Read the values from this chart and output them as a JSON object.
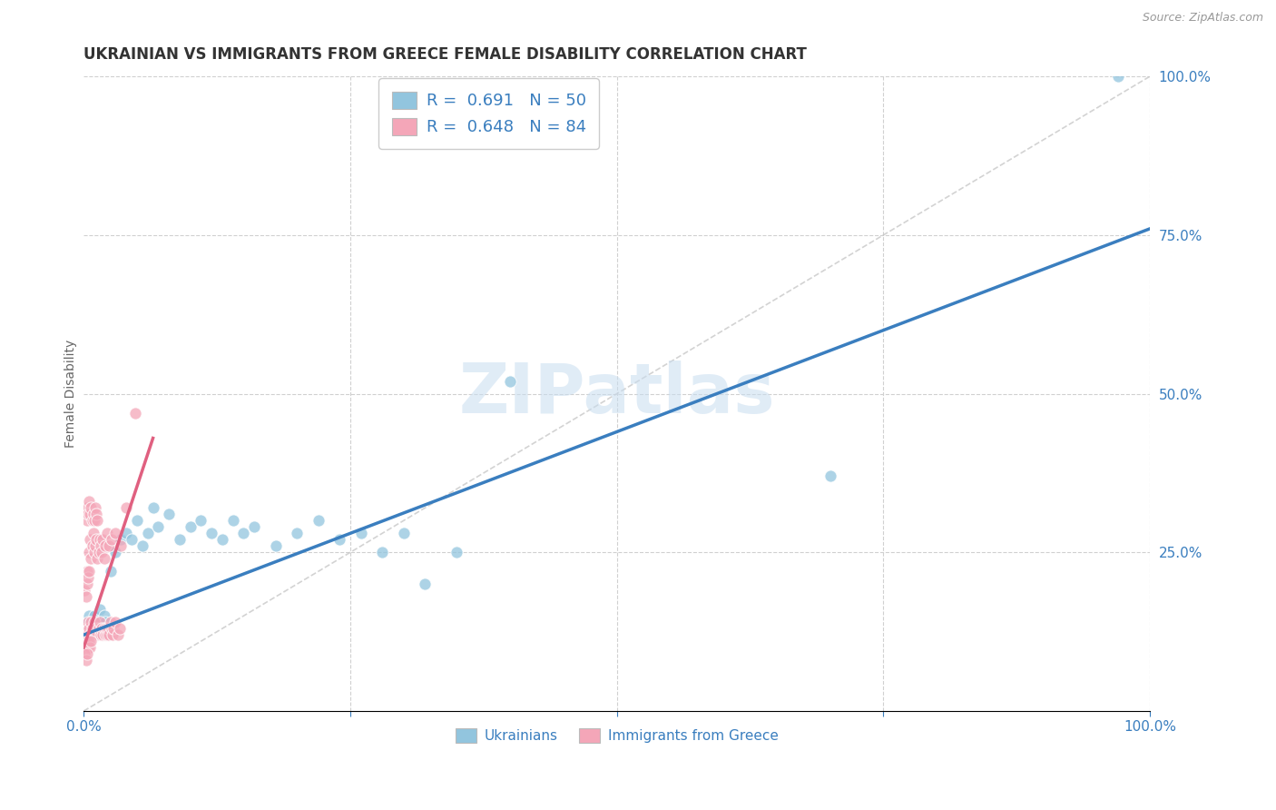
{
  "title": "UKRAINIAN VS IMMIGRANTS FROM GREECE FEMALE DISABILITY CORRELATION CHART",
  "source": "Source: ZipAtlas.com",
  "ylabel": "Female Disability",
  "xlim": [
    0,
    1
  ],
  "ylim": [
    0,
    1
  ],
  "watermark": "ZIPatlas",
  "blue_color": "#92c5de",
  "pink_color": "#f4a6b8",
  "line_blue": "#3a7ebf",
  "line_pink": "#e06080",
  "legend_text_color": "#3a7ebf",
  "title_color": "#333333",
  "grid_color": "#d0d0d0",
  "diagonal_color": "#c8c8c8",
  "blue_scatter": [
    [
      0.002,
      0.14
    ],
    [
      0.003,
      0.13
    ],
    [
      0.004,
      0.13
    ],
    [
      0.005,
      0.15
    ],
    [
      0.006,
      0.12
    ],
    [
      0.007,
      0.14
    ],
    [
      0.008,
      0.13
    ],
    [
      0.009,
      0.12
    ],
    [
      0.01,
      0.15
    ],
    [
      0.011,
      0.13
    ],
    [
      0.012,
      0.14
    ],
    [
      0.013,
      0.12
    ],
    [
      0.014,
      0.13
    ],
    [
      0.015,
      0.16
    ],
    [
      0.016,
      0.14
    ],
    [
      0.017,
      0.13
    ],
    [
      0.018,
      0.12
    ],
    [
      0.019,
      0.15
    ],
    [
      0.02,
      0.14
    ],
    [
      0.025,
      0.22
    ],
    [
      0.03,
      0.25
    ],
    [
      0.035,
      0.27
    ],
    [
      0.04,
      0.28
    ],
    [
      0.045,
      0.27
    ],
    [
      0.05,
      0.3
    ],
    [
      0.055,
      0.26
    ],
    [
      0.06,
      0.28
    ],
    [
      0.065,
      0.32
    ],
    [
      0.07,
      0.29
    ],
    [
      0.08,
      0.31
    ],
    [
      0.09,
      0.27
    ],
    [
      0.1,
      0.29
    ],
    [
      0.11,
      0.3
    ],
    [
      0.12,
      0.28
    ],
    [
      0.13,
      0.27
    ],
    [
      0.14,
      0.3
    ],
    [
      0.15,
      0.28
    ],
    [
      0.16,
      0.29
    ],
    [
      0.18,
      0.26
    ],
    [
      0.2,
      0.28
    ],
    [
      0.22,
      0.3
    ],
    [
      0.24,
      0.27
    ],
    [
      0.26,
      0.28
    ],
    [
      0.28,
      0.25
    ],
    [
      0.3,
      0.28
    ],
    [
      0.32,
      0.2
    ],
    [
      0.35,
      0.25
    ],
    [
      0.4,
      0.52
    ],
    [
      0.7,
      0.37
    ],
    [
      0.97,
      1.0
    ]
  ],
  "pink_scatter": [
    [
      0.001,
      0.12
    ],
    [
      0.002,
      0.13
    ],
    [
      0.003,
      0.12
    ],
    [
      0.004,
      0.14
    ],
    [
      0.005,
      0.13
    ],
    [
      0.006,
      0.12
    ],
    [
      0.007,
      0.14
    ],
    [
      0.008,
      0.13
    ],
    [
      0.009,
      0.12
    ],
    [
      0.01,
      0.14
    ],
    [
      0.011,
      0.12
    ],
    [
      0.012,
      0.13
    ],
    [
      0.013,
      0.12
    ],
    [
      0.014,
      0.13
    ],
    [
      0.015,
      0.14
    ],
    [
      0.016,
      0.12
    ],
    [
      0.017,
      0.13
    ],
    [
      0.018,
      0.12
    ],
    [
      0.019,
      0.13
    ],
    [
      0.02,
      0.12
    ],
    [
      0.021,
      0.13
    ],
    [
      0.022,
      0.12
    ],
    [
      0.023,
      0.13
    ],
    [
      0.024,
      0.12
    ],
    [
      0.025,
      0.14
    ],
    [
      0.026,
      0.13
    ],
    [
      0.027,
      0.12
    ],
    [
      0.028,
      0.13
    ],
    [
      0.03,
      0.14
    ],
    [
      0.032,
      0.12
    ],
    [
      0.034,
      0.13
    ],
    [
      0.003,
      0.22
    ],
    [
      0.005,
      0.25
    ],
    [
      0.006,
      0.27
    ],
    [
      0.007,
      0.24
    ],
    [
      0.008,
      0.26
    ],
    [
      0.009,
      0.28
    ],
    [
      0.01,
      0.25
    ],
    [
      0.011,
      0.26
    ],
    [
      0.012,
      0.27
    ],
    [
      0.013,
      0.24
    ],
    [
      0.014,
      0.25
    ],
    [
      0.015,
      0.27
    ],
    [
      0.016,
      0.26
    ],
    [
      0.017,
      0.25
    ],
    [
      0.018,
      0.27
    ],
    [
      0.019,
      0.24
    ],
    [
      0.02,
      0.26
    ],
    [
      0.022,
      0.28
    ],
    [
      0.024,
      0.26
    ],
    [
      0.026,
      0.27
    ],
    [
      0.03,
      0.28
    ],
    [
      0.035,
      0.26
    ],
    [
      0.002,
      0.32
    ],
    [
      0.003,
      0.3
    ],
    [
      0.004,
      0.31
    ],
    [
      0.005,
      0.33
    ],
    [
      0.006,
      0.31
    ],
    [
      0.007,
      0.32
    ],
    [
      0.008,
      0.3
    ],
    [
      0.009,
      0.31
    ],
    [
      0.01,
      0.3
    ],
    [
      0.011,
      0.32
    ],
    [
      0.012,
      0.31
    ],
    [
      0.013,
      0.3
    ],
    [
      0.001,
      0.11
    ],
    [
      0.002,
      0.1
    ],
    [
      0.003,
      0.11
    ],
    [
      0.004,
      0.1
    ],
    [
      0.005,
      0.11
    ],
    [
      0.006,
      0.1
    ],
    [
      0.007,
      0.11
    ],
    [
      0.001,
      0.09
    ],
    [
      0.002,
      0.08
    ],
    [
      0.003,
      0.09
    ],
    [
      0.04,
      0.32
    ],
    [
      0.048,
      0.47
    ],
    [
      0.001,
      0.19
    ],
    [
      0.002,
      0.18
    ],
    [
      0.003,
      0.2
    ],
    [
      0.004,
      0.21
    ],
    [
      0.005,
      0.22
    ]
  ],
  "blue_line_x": [
    0.0,
    1.0
  ],
  "blue_line_y": [
    0.12,
    0.76
  ],
  "pink_line_x": [
    0.0,
    0.065
  ],
  "pink_line_y": [
    0.1,
    0.43
  ],
  "diag_line_x": [
    0.0,
    1.0
  ],
  "diag_line_y": [
    0.0,
    1.0
  ]
}
